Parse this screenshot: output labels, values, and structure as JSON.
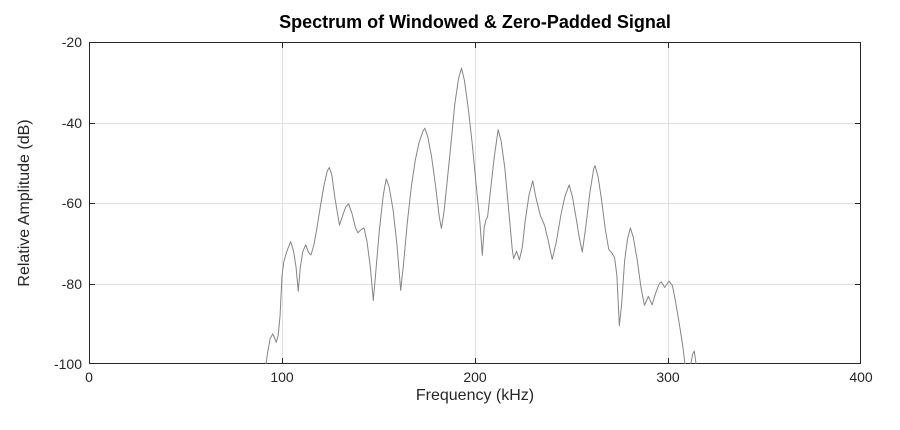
{
  "figure": {
    "title": "Spectrum of Windowed & Zero-Padded Signal"
  },
  "colors": {
    "background": "#ffffff",
    "curve": "#858585",
    "axis": "#262626",
    "grid": "#e0e0e0",
    "title_text": "#000000",
    "label_text": "#262626"
  },
  "chart_data": {
    "type": "line",
    "title": "Spectrum of Windowed & Zero-Padded Signal",
    "xlabel": "Frequency (kHz)",
    "ylabel": "Relative Amplitude (dB)",
    "xlim": [
      0,
      400
    ],
    "ylim": [
      -100,
      -20
    ],
    "xticks": [
      0,
      100,
      200,
      300,
      400
    ],
    "yticks": [
      -20,
      -40,
      -60,
      -80,
      -100
    ],
    "grid": true,
    "legend": "none",
    "line_color": "#858585",
    "series": [
      {
        "name": "windowed-zero-padded-spectrum",
        "points": [
          [
            90.6,
            -101.5
          ],
          [
            91.7,
            -100
          ],
          [
            92.6,
            -97
          ],
          [
            93.8,
            -93.8
          ],
          [
            95.2,
            -92.5
          ],
          [
            96.2,
            -93.6
          ],
          [
            97.0,
            -94.6
          ],
          [
            98.0,
            -93
          ],
          [
            99.0,
            -88
          ],
          [
            100.0,
            -78
          ],
          [
            101.0,
            -74.5
          ],
          [
            102.5,
            -72
          ],
          [
            104.5,
            -69.6
          ],
          [
            106.0,
            -72
          ],
          [
            107.3,
            -76
          ],
          [
            108.4,
            -81.9
          ],
          [
            109.5,
            -76
          ],
          [
            110.8,
            -72
          ],
          [
            112.3,
            -70.4
          ],
          [
            113.8,
            -72.3
          ],
          [
            115.0,
            -72.9
          ],
          [
            116.5,
            -70.5
          ],
          [
            118.0,
            -66.5
          ],
          [
            120.0,
            -60.5
          ],
          [
            122.0,
            -55
          ],
          [
            123.5,
            -52
          ],
          [
            124.5,
            -51.2
          ],
          [
            125.8,
            -53
          ],
          [
            127.5,
            -59
          ],
          [
            129.8,
            -65.5
          ],
          [
            131.5,
            -63
          ],
          [
            133.0,
            -61
          ],
          [
            134.5,
            -60.2
          ],
          [
            136.2,
            -62.5
          ],
          [
            138.0,
            -66
          ],
          [
            139.3,
            -67.4
          ],
          [
            141.0,
            -66.6
          ],
          [
            142.5,
            -66.2
          ],
          [
            144.0,
            -69.5
          ],
          [
            145.8,
            -76
          ],
          [
            147.3,
            -84.2
          ],
          [
            148.8,
            -76
          ],
          [
            150.5,
            -66.5
          ],
          [
            152.5,
            -58
          ],
          [
            154.0,
            -54
          ],
          [
            155.5,
            -56
          ],
          [
            157.5,
            -61.5
          ],
          [
            159.5,
            -70
          ],
          [
            161.5,
            -81.7
          ],
          [
            163.0,
            -75
          ],
          [
            165.0,
            -64.5
          ],
          [
            167.0,
            -56
          ],
          [
            169.0,
            -49.5
          ],
          [
            171.0,
            -45
          ],
          [
            173.0,
            -42.2
          ],
          [
            174.0,
            -41.4
          ],
          [
            175.5,
            -43.5
          ],
          [
            177.5,
            -48.5
          ],
          [
            179.5,
            -55.5
          ],
          [
            181.5,
            -63.5
          ],
          [
            182.6,
            -66.3
          ],
          [
            184.0,
            -62
          ],
          [
            185.5,
            -55
          ],
          [
            187.5,
            -45.5
          ],
          [
            189.5,
            -35.5
          ],
          [
            191.5,
            -29
          ],
          [
            193.0,
            -26.5
          ],
          [
            194.5,
            -29.5
          ],
          [
            196.5,
            -36.5
          ],
          [
            198.5,
            -45
          ],
          [
            200.5,
            -55
          ],
          [
            202.5,
            -64.5
          ],
          [
            203.8,
            -73
          ],
          [
            204.8,
            -66
          ],
          [
            205.8,
            -64
          ],
          [
            206.5,
            -63.5
          ],
          [
            208.0,
            -57
          ],
          [
            210.0,
            -48.5
          ],
          [
            212.0,
            -41.8
          ],
          [
            213.5,
            -44.5
          ],
          [
            215.5,
            -51.5
          ],
          [
            217.5,
            -62
          ],
          [
            219.3,
            -71.5
          ],
          [
            220.0,
            -73.8
          ],
          [
            221.5,
            -72
          ],
          [
            223.0,
            -74.1
          ],
          [
            224.5,
            -71
          ],
          [
            226.0,
            -64.5
          ],
          [
            228.0,
            -58
          ],
          [
            229.9,
            -54.5
          ],
          [
            231.5,
            -58.5
          ],
          [
            233.8,
            -63
          ],
          [
            236.0,
            -65.5
          ],
          [
            238.0,
            -69.5
          ],
          [
            240.0,
            -74
          ],
          [
            242.0,
            -70
          ],
          [
            244.5,
            -63
          ],
          [
            246.5,
            -58.5
          ],
          [
            248.8,
            -55.5
          ],
          [
            250.5,
            -58.5
          ],
          [
            252.3,
            -63.5
          ],
          [
            254.0,
            -68.5
          ],
          [
            255.6,
            -72.2
          ],
          [
            257.5,
            -65.5
          ],
          [
            259.5,
            -57.5
          ],
          [
            261.5,
            -51.5
          ],
          [
            262.2,
            -50.7
          ],
          [
            263.8,
            -53.5
          ],
          [
            265.5,
            -59
          ],
          [
            267.5,
            -66.5
          ],
          [
            269.3,
            -71.5
          ],
          [
            271.0,
            -72.5
          ],
          [
            272.3,
            -73.5
          ],
          [
            273.5,
            -78
          ],
          [
            274.8,
            -90.5
          ],
          [
            276.0,
            -85
          ],
          [
            277.5,
            -74.5
          ],
          [
            279.0,
            -69
          ],
          [
            280.5,
            -66.2
          ],
          [
            282.0,
            -68.5
          ],
          [
            284.0,
            -74
          ],
          [
            286.0,
            -81
          ],
          [
            287.8,
            -85.4
          ],
          [
            289.8,
            -83.2
          ],
          [
            291.8,
            -85.3
          ],
          [
            293.5,
            -82.5
          ],
          [
            295.5,
            -80
          ],
          [
            296.5,
            -79.6
          ],
          [
            298.3,
            -81
          ],
          [
            300.5,
            -79.4
          ],
          [
            302.3,
            -80.5
          ],
          [
            303.8,
            -84.2
          ],
          [
            305.5,
            -89
          ],
          [
            307.5,
            -95
          ],
          [
            308.8,
            -100
          ],
          [
            309.6,
            -103.5
          ],
          [
            310.9,
            -103.5
          ],
          [
            311.8,
            -100
          ],
          [
            312.8,
            -97.5
          ],
          [
            313.6,
            -96.8
          ],
          [
            314.4,
            -99.5
          ],
          [
            315.1,
            -103.5
          ]
        ]
      }
    ]
  }
}
